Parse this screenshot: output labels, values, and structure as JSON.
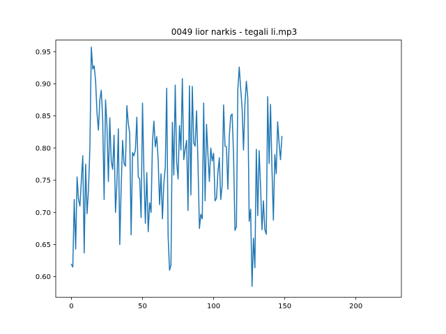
{
  "chart_data": {
    "type": "line",
    "title": "0049 lior narkis - tegali li.mp3",
    "xlabel": "",
    "ylabel": "",
    "xlim": [
      -11,
      232
    ],
    "ylim": [
      0.568,
      0.968
    ],
    "xticks": [
      0,
      50,
      100,
      150,
      200
    ],
    "xtick_labels": [
      "0",
      "50",
      "100",
      "150",
      "200"
    ],
    "yticks": [
      0.6,
      0.65,
      0.7,
      0.75,
      0.8,
      0.85,
      0.9,
      0.95
    ],
    "ytick_labels": [
      "0.60",
      "0.65",
      "0.70",
      "0.75",
      "0.80",
      "0.85",
      "0.90",
      "0.95"
    ],
    "grid": false,
    "legend": false,
    "series": [
      {
        "color": "#1f77b4",
        "x_start": 0,
        "x_step": 1,
        "values": [
          0.619,
          0.615,
          0.72,
          0.643,
          0.755,
          0.72,
          0.71,
          0.75,
          0.788,
          0.637,
          0.775,
          0.698,
          0.735,
          0.8,
          0.957,
          0.923,
          0.928,
          0.905,
          0.855,
          0.828,
          0.875,
          0.89,
          0.845,
          0.72,
          0.875,
          0.835,
          0.748,
          0.847,
          0.78,
          0.767,
          0.82,
          0.7,
          0.745,
          0.83,
          0.65,
          0.738,
          0.812,
          0.776,
          0.772,
          0.866,
          0.838,
          0.823,
          0.665,
          0.793,
          0.788,
          0.797,
          0.848,
          0.755,
          0.752,
          0.692,
          0.87,
          0.76,
          0.683,
          0.762,
          0.67,
          0.715,
          0.7,
          0.81,
          0.842,
          0.802,
          0.818,
          0.782,
          0.712,
          0.76,
          0.69,
          0.745,
          0.77,
          0.893,
          0.663,
          0.61,
          0.618,
          0.84,
          0.758,
          0.898,
          0.778,
          0.752,
          0.835,
          0.797,
          0.908,
          0.782,
          0.798,
          0.812,
          0.703,
          0.897,
          0.727,
          0.896,
          0.808,
          0.803,
          0.858,
          0.776,
          0.675,
          0.697,
          0.69,
          0.87,
          0.718,
          0.837,
          0.79,
          0.748,
          0.8,
          0.78,
          0.792,
          0.718,
          0.722,
          0.762,
          0.785,
          0.72,
          0.742,
          0.867,
          0.803,
          0.802,
          0.736,
          0.818,
          0.85,
          0.853,
          0.79,
          0.672,
          0.678,
          0.89,
          0.926,
          0.893,
          0.863,
          0.797,
          0.868,
          0.904,
          0.878,
          0.686,
          0.705,
          0.585,
          0.66,
          0.614,
          0.798,
          0.695,
          0.796,
          0.74,
          0.673,
          0.718,
          0.673,
          0.666,
          0.88,
          0.776,
          0.868,
          0.768,
          0.688,
          0.79,
          0.76,
          0.841,
          0.808,
          0.782,
          0.818
        ]
      }
    ]
  }
}
